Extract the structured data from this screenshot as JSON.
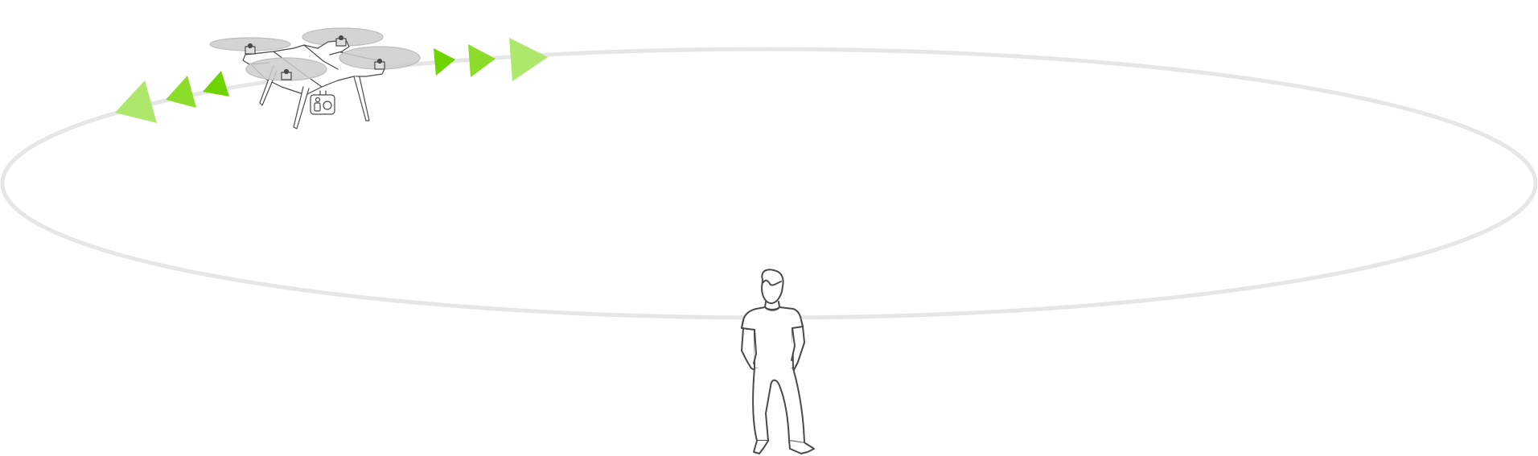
{
  "diagram": {
    "kind": "orbit-illustration",
    "orbit_color": "#e6e6e6",
    "arrow_colors": [
      "#6dd400",
      "#8cdc2a",
      "#aee86a"
    ],
    "line_color": "#4a4a4a",
    "propeller_color": "#cccccc",
    "icons": {
      "drone": "quadcopter-drone-icon",
      "person": "standing-person-icon",
      "direction": "direction-arrow-icon"
    }
  }
}
